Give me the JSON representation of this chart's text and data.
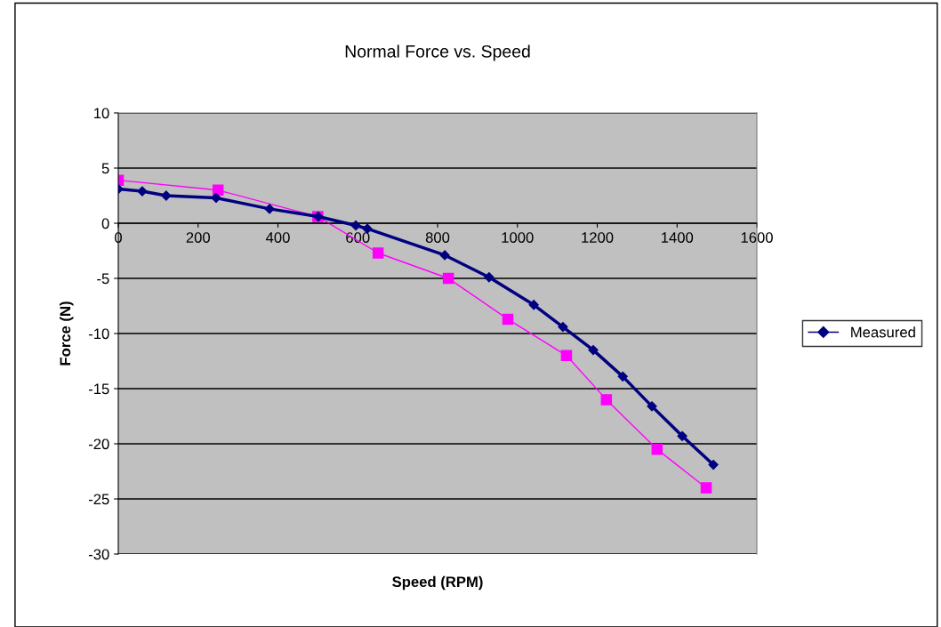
{
  "chart_data": {
    "type": "line",
    "title": "Normal Force vs. Speed",
    "xlabel": "Speed (RPM)",
    "ylabel": "Force (N)",
    "xlim": [
      0,
      1600
    ],
    "xticks": [
      0,
      200,
      400,
      600,
      800,
      1000,
      1200,
      1400,
      1600
    ],
    "ylim": [
      -30,
      10
    ],
    "yticks": [
      -30,
      -25,
      -20,
      -15,
      -10,
      -5,
      0,
      5,
      10
    ],
    "grid": "y",
    "legend": "right",
    "series": [
      {
        "name": "Measured",
        "color": "#000080",
        "marker": "diamond",
        "x": [
          0,
          60,
          120,
          245,
          379,
          501,
          595,
          624,
          818,
          929,
          1041,
          1114,
          1190,
          1264,
          1337,
          1413,
          1491
        ],
        "values": [
          3.1,
          2.9,
          2.5,
          2.3,
          1.3,
          0.6,
          -0.2,
          -0.5,
          -2.9,
          -4.9,
          -7.4,
          -9.4,
          -11.5,
          -13.9,
          -16.6,
          -19.3,
          -21.9
        ]
      },
      {
        "color": "#ff00ff",
        "marker": "square",
        "x": [
          0,
          250,
          500,
          651,
          827,
          976,
          1123,
          1223,
          1350,
          1473
        ],
        "values": [
          3.9,
          3.0,
          0.6,
          -2.7,
          -5.0,
          -8.7,
          -12.0,
          -16.0,
          -20.5,
          -24.0
        ]
      }
    ]
  }
}
